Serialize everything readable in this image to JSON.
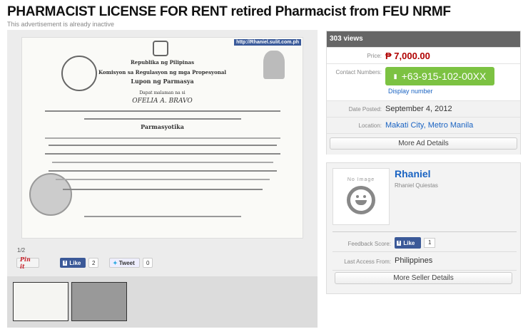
{
  "title": "PHARMACIST LICENSE FOR RENT retired Pharmacist from FEU NRMF",
  "status": "This advertisement is already inactive",
  "gallery": {
    "watermark": "http://Rhaniel.sulit.com.ph",
    "certificate": {
      "line1": "Republika ng Pilipinas",
      "line2": "Komisyon sa Regulasyon ng mga Propesyonal",
      "line3": "Lupon ng Parmasya",
      "line4": "Dapat malaman na si",
      "name": "OFELIA A. BRAVO",
      "profession": "Parmasyotika"
    },
    "counter": "1/2",
    "pinit": "Pin it",
    "like_label": "Like",
    "like_count": "2",
    "tweet_label": "Tweet",
    "tweet_count": "0"
  },
  "info": {
    "views": "303 views",
    "price_label": "Price:",
    "price": "₱ 7,000.00",
    "contact_label": "Contact Numbers:",
    "phone": "+63-915-102-00XX",
    "display_number": "Display number",
    "date_label": "Date Posted:",
    "date": "September 4, 2012",
    "location_label": "Location:",
    "location": "Makati City, Metro Manila",
    "more_button": "More Ad Details"
  },
  "seller": {
    "no_image": "No Image",
    "name": "Rhaniel",
    "full_name": "Rhaniel Quiestas",
    "feedback_label": "Feedback Score:",
    "like_label": "Like",
    "like_count": "1",
    "access_label": "Last Access From:",
    "access": "Philippines",
    "more_button": "More Seller Details"
  },
  "colors": {
    "price": "#b00000",
    "phone_button": "#7cc242",
    "link": "#1a63c2",
    "header": "#666666",
    "facebook": "#3b5998"
  }
}
